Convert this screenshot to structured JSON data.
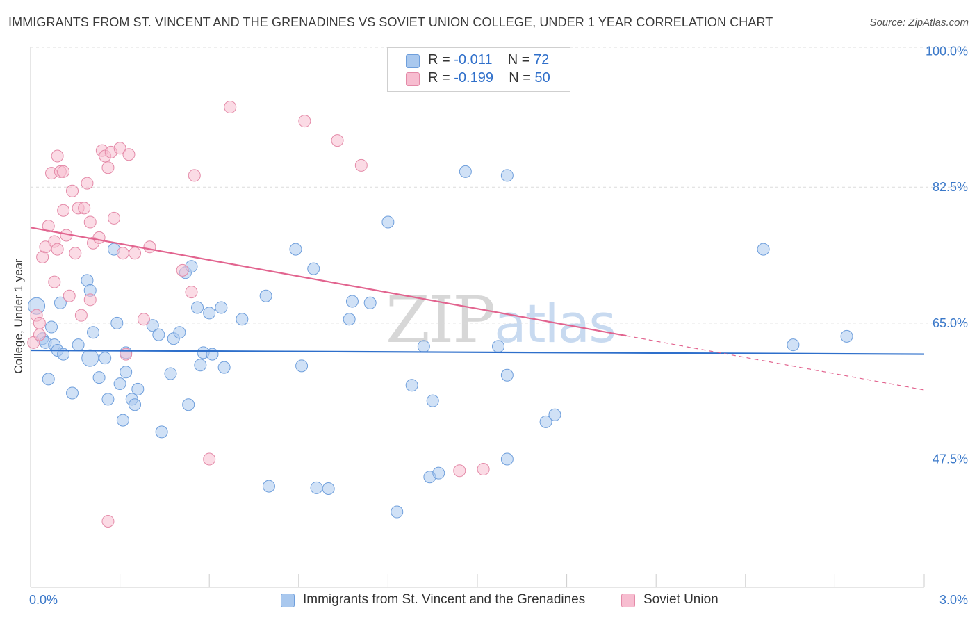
{
  "title": "IMMIGRANTS FROM ST. VINCENT AND THE GRENADINES VS SOVIET UNION COLLEGE, UNDER 1 YEAR CORRELATION CHART",
  "source": "Source: ZipAtlas.com",
  "watermark": "ZIPatlas",
  "colors": {
    "blue_fill": "#a9c8ee",
    "blue_stroke": "#6f9fdc",
    "blue_line": "#2e6fcb",
    "pink_fill": "#f7bdd0",
    "pink_stroke": "#e48aa8",
    "pink_line": "#e2648f",
    "axis_text": "#3a78c9"
  },
  "legend": {
    "rows": [
      {
        "r_label": "R = ",
        "r_value": "-0.011",
        "n_label": "N = ",
        "n_value": "72"
      },
      {
        "r_label": "R = ",
        "r_value": "-0.199",
        "n_label": "N = ",
        "n_value": "50"
      }
    ]
  },
  "bottom_legend": [
    "Immigrants from St. Vincent and the Grenadines",
    "Soviet Union"
  ],
  "chart_data": {
    "type": "scatter",
    "ylabel": "College, Under 1 year",
    "xlim": [
      0.0,
      3.0
    ],
    "ylim": [
      31.0,
      103.0
    ],
    "x_tick_labels": [
      "0.0%",
      "3.0%"
    ],
    "y_ticks": [
      47.5,
      65.0,
      82.5,
      100.0
    ],
    "y_tick_labels": [
      "47.5%",
      "65.0%",
      "82.5%",
      "100.0%"
    ],
    "grid": "dashed horizontal",
    "series": [
      {
        "name": "Immigrants from St. Vincent and the Grenadines",
        "color": "blue",
        "trend": {
          "x": [
            0.0,
            3.0
          ],
          "y": [
            61.5,
            61.0
          ],
          "solid_until": 3.0
        },
        "points": [
          [
            0.02,
            67.2,
            2
          ],
          [
            0.04,
            63.0,
            1
          ],
          [
            0.05,
            62.5,
            1
          ],
          [
            0.06,
            57.8,
            1
          ],
          [
            0.08,
            62.2,
            1
          ],
          [
            0.07,
            64.5,
            1
          ],
          [
            0.09,
            61.5,
            1
          ],
          [
            0.1,
            67.6,
            1
          ],
          [
            0.11,
            61.0,
            1
          ],
          [
            0.14,
            56.0,
            1
          ],
          [
            0.16,
            62.2,
            1
          ],
          [
            0.2,
            60.5,
            2
          ],
          [
            0.19,
            70.5,
            1
          ],
          [
            0.2,
            69.2,
            1
          ],
          [
            0.21,
            63.8,
            1
          ],
          [
            0.23,
            58.0,
            1
          ],
          [
            0.25,
            60.5,
            1
          ],
          [
            0.26,
            55.2,
            1
          ],
          [
            0.28,
            74.5,
            1
          ],
          [
            0.29,
            65.0,
            1
          ],
          [
            0.3,
            57.2,
            1
          ],
          [
            0.31,
            52.5,
            1
          ],
          [
            0.32,
            58.7,
            1
          ],
          [
            0.32,
            61.2,
            1
          ],
          [
            0.34,
            55.2,
            1
          ],
          [
            0.35,
            54.5,
            1
          ],
          [
            0.36,
            56.5,
            1
          ],
          [
            0.41,
            64.7,
            1
          ],
          [
            0.43,
            63.5,
            1
          ],
          [
            0.44,
            51.0,
            1
          ],
          [
            0.47,
            58.5,
            1
          ],
          [
            0.48,
            63.0,
            1
          ],
          [
            0.5,
            63.8,
            1
          ],
          [
            0.52,
            71.5,
            1
          ],
          [
            0.53,
            54.5,
            1
          ],
          [
            0.54,
            72.3,
            1
          ],
          [
            0.56,
            67.0,
            1
          ],
          [
            0.57,
            59.6,
            1
          ],
          [
            0.58,
            61.2,
            1
          ],
          [
            0.6,
            66.3,
            1
          ],
          [
            0.61,
            61.0,
            1
          ],
          [
            0.64,
            67.0,
            1
          ],
          [
            0.65,
            59.3,
            1
          ],
          [
            0.71,
            65.5,
            1
          ],
          [
            0.79,
            68.5,
            1
          ],
          [
            0.8,
            44.0,
            1
          ],
          [
            0.89,
            74.5,
            1
          ],
          [
            0.91,
            59.5,
            1
          ],
          [
            0.95,
            72.0,
            1
          ],
          [
            0.96,
            43.8,
            1
          ],
          [
            1.0,
            43.7,
            1
          ],
          [
            1.07,
            65.5,
            1
          ],
          [
            1.08,
            67.8,
            1
          ],
          [
            1.14,
            67.6,
            1
          ],
          [
            1.2,
            78.0,
            1
          ],
          [
            1.23,
            40.7,
            1
          ],
          [
            1.28,
            57.0,
            1
          ],
          [
            1.32,
            62.0,
            1
          ],
          [
            1.34,
            45.2,
            1
          ],
          [
            1.35,
            55.0,
            1
          ],
          [
            1.37,
            45.7,
            1
          ],
          [
            1.46,
            84.5,
            1
          ],
          [
            1.57,
            62.0,
            1
          ],
          [
            1.6,
            58.3,
            1
          ],
          [
            1.6,
            47.5,
            1
          ],
          [
            1.6,
            84.0,
            1
          ],
          [
            1.73,
            52.3,
            1
          ],
          [
            1.76,
            53.2,
            1
          ],
          [
            2.46,
            74.5,
            1
          ],
          [
            2.56,
            62.2,
            1
          ],
          [
            2.74,
            63.3,
            1
          ]
        ]
      },
      {
        "name": "Soviet Union",
        "color": "pink",
        "trend": {
          "x": [
            0.0,
            3.0
          ],
          "y": [
            77.3,
            56.4
          ],
          "solid_until": 2.0
        },
        "points": [
          [
            0.01,
            62.5,
            1
          ],
          [
            0.02,
            66.0,
            1
          ],
          [
            0.03,
            65.0,
            1
          ],
          [
            0.03,
            63.5,
            1
          ],
          [
            0.04,
            73.5,
            1
          ],
          [
            0.05,
            74.8,
            1
          ],
          [
            0.06,
            77.5,
            1
          ],
          [
            0.07,
            84.3,
            1
          ],
          [
            0.08,
            70.3,
            1
          ],
          [
            0.08,
            75.5,
            1
          ],
          [
            0.09,
            74.5,
            1
          ],
          [
            0.09,
            86.5,
            1
          ],
          [
            0.1,
            84.5,
            1
          ],
          [
            0.11,
            84.5,
            1
          ],
          [
            0.11,
            79.5,
            1
          ],
          [
            0.12,
            76.3,
            1
          ],
          [
            0.13,
            68.5,
            1
          ],
          [
            0.14,
            82.0,
            1
          ],
          [
            0.15,
            74.0,
            1
          ],
          [
            0.16,
            79.8,
            1
          ],
          [
            0.17,
            66.0,
            1
          ],
          [
            0.18,
            79.8,
            1
          ],
          [
            0.19,
            83.0,
            1
          ],
          [
            0.2,
            78.0,
            1
          ],
          [
            0.2,
            68.0,
            1
          ],
          [
            0.21,
            75.3,
            1
          ],
          [
            0.23,
            76.0,
            1
          ],
          [
            0.24,
            87.2,
            1
          ],
          [
            0.25,
            86.5,
            1
          ],
          [
            0.26,
            85.0,
            1
          ],
          [
            0.26,
            39.5,
            1
          ],
          [
            0.27,
            87.0,
            1
          ],
          [
            0.28,
            78.5,
            1
          ],
          [
            0.3,
            87.5,
            1
          ],
          [
            0.31,
            74.0,
            1
          ],
          [
            0.32,
            61.0,
            1
          ],
          [
            0.33,
            86.7,
            1
          ],
          [
            0.35,
            74.0,
            1
          ],
          [
            0.38,
            65.5,
            1
          ],
          [
            0.4,
            74.8,
            1
          ],
          [
            0.51,
            71.8,
            1
          ],
          [
            0.54,
            69.0,
            1
          ],
          [
            0.55,
            84.0,
            1
          ],
          [
            0.6,
            47.5,
            1
          ],
          [
            0.67,
            92.8,
            1
          ],
          [
            0.92,
            91.0,
            1
          ],
          [
            1.03,
            88.5,
            1
          ],
          [
            1.11,
            85.3,
            1
          ],
          [
            1.44,
            46.0,
            1
          ],
          [
            1.52,
            46.2,
            1
          ]
        ]
      }
    ]
  }
}
